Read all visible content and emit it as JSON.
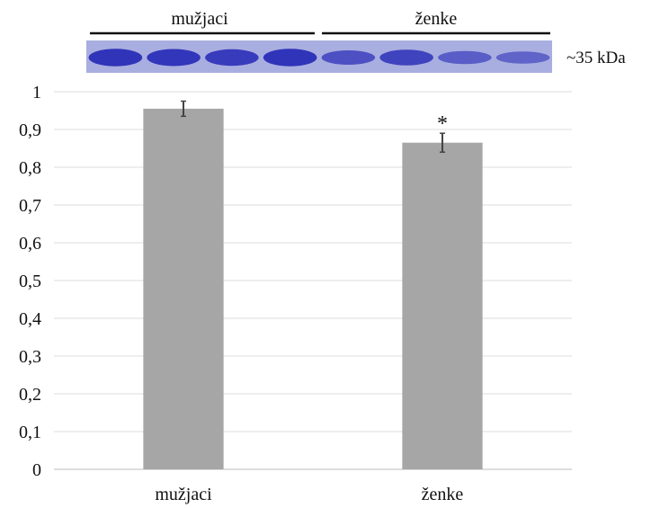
{
  "gel": {
    "group_labels": [
      "mužjaci",
      "ženke"
    ],
    "band_label": "~35 kDa",
    "band_intensity": [
      0.95,
      0.9,
      0.85,
      0.95,
      0.6,
      0.75,
      0.45,
      0.35
    ],
    "band_color": "#2b2fb8",
    "background_color": "#a9aee0"
  },
  "chart_data": {
    "type": "bar",
    "categories": [
      "mužjaci",
      "ženke"
    ],
    "values": [
      0.955,
      0.865
    ],
    "errors": [
      0.02,
      0.025
    ],
    "significance": [
      "",
      "*"
    ],
    "ylim": [
      0,
      1
    ],
    "yticks": [
      "0",
      "0,1",
      "0,2",
      "0,3",
      "0,4",
      "0,5",
      "0,6",
      "0,7",
      "0,8",
      "0,9",
      "1"
    ],
    "grid": true,
    "bar_color": "#a6a6a6",
    "title": "",
    "xlabel": "",
    "ylabel": ""
  }
}
